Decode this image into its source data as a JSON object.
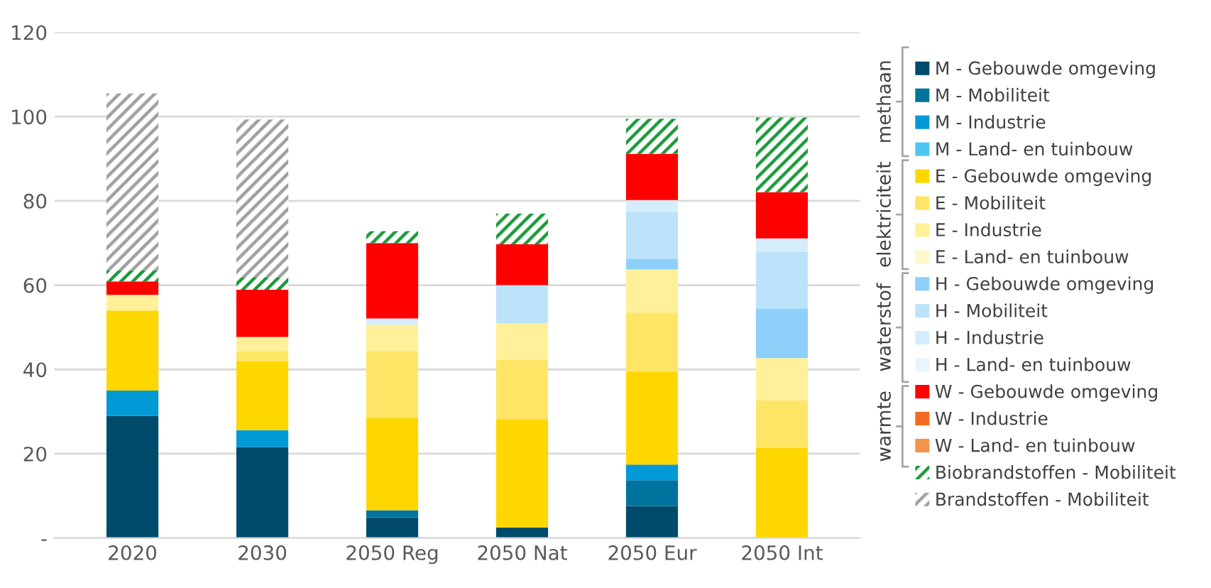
{
  "chart_data": {
    "type": "bar",
    "stacked": true,
    "categories": [
      "2020",
      "2030",
      "2050 Reg",
      "2050 Nat",
      "2050 Eur",
      "2050 Int"
    ],
    "ylim": [
      0,
      120
    ],
    "yticks": [
      {
        "value": 0,
        "label": "-"
      },
      20,
      40,
      60,
      80,
      100,
      120
    ],
    "grid": "y",
    "legend": "right",
    "annotations": [
      "methaan",
      "elektriciteit",
      "waterstof",
      "warmte"
    ],
    "series": [
      {
        "name": "M - Gebouwde omgeving",
        "color": "#004b6b",
        "values": [
          29,
          21.6,
          4.9,
          2.5,
          7.6,
          0
        ]
      },
      {
        "name": "M - Mobiliteit",
        "color": "#00739e",
        "values": [
          0,
          0,
          1.7,
          0,
          6.1,
          0
        ]
      },
      {
        "name": "M - Industrie",
        "color": "#0099d6",
        "values": [
          6,
          4,
          0,
          0,
          3.7,
          0
        ]
      },
      {
        "name": "M - Land- en tuinbouw",
        "color": "#4dc6f5",
        "values": [
          0,
          0,
          0,
          0,
          0,
          0
        ]
      },
      {
        "name": "E - Gebouwde omgeving",
        "color": "#ffd700",
        "values": [
          19,
          16.3,
          21.8,
          25.7,
          22.1,
          21.4
        ]
      },
      {
        "name": "E - Mobiliteit",
        "color": "#ffe566",
        "values": [
          0,
          2.5,
          16,
          14.1,
          14,
          11.3
        ]
      },
      {
        "name": "E - Industrie",
        "color": "#fff099",
        "values": [
          3.7,
          3.3,
          6.2,
          8.6,
          10.2,
          10
        ]
      },
      {
        "name": "E - Land- en tuinbouw",
        "color": "#fff7cc",
        "values": [
          0,
          0,
          0,
          0,
          0,
          0
        ]
      },
      {
        "name": "H - Gebouwde omgeving",
        "color": "#8fd0fa",
        "values": [
          0,
          0,
          0,
          0,
          2.6,
          11.8
        ]
      },
      {
        "name": "H - Mobiliteit",
        "color": "#bde3fb",
        "values": [
          0,
          0,
          0,
          9.1,
          11.1,
          13.4
        ]
      },
      {
        "name": "H - Industrie",
        "color": "#d4edfc",
        "values": [
          0,
          0,
          1.5,
          0,
          2.8,
          3.2
        ]
      },
      {
        "name": "H - Land- en tuinbouw",
        "color": "#e8f5fd",
        "values": [
          0,
          0,
          0,
          0,
          0,
          0
        ]
      },
      {
        "name": "W - Gebouwde omgeving",
        "color": "#ff0000",
        "values": [
          3.2,
          11.2,
          17.9,
          9.7,
          11,
          11
        ]
      },
      {
        "name": "W - Industrie",
        "color": "#f26b22",
        "values": [
          0,
          0,
          0,
          0,
          0,
          0
        ]
      },
      {
        "name": "W - Land- en tuinbouw",
        "color": "#f5934a",
        "values": [
          0,
          0,
          0,
          0,
          0,
          0
        ]
      },
      {
        "name": "Biobrandstoffen - Mobiliteit",
        "color": "#1a9a3a",
        "values": [
          2.6,
          2.9,
          2.8,
          7.3,
          8.3,
          17.7
        ]
      },
      {
        "name": "Brandstoffen - Mobiliteit",
        "color": "#a0a0a0",
        "values": [
          42,
          37.5,
          0,
          0,
          0,
          0
        ]
      }
    ]
  }
}
